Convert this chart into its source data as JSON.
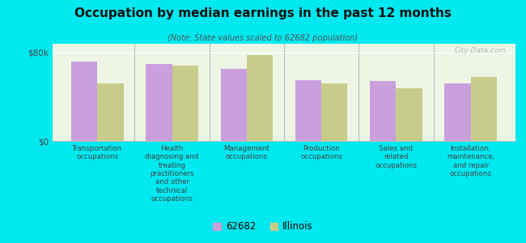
{
  "title": "Occupation by median earnings in the past 12 months",
  "subtitle": "(Note: State values scaled to 62682 population)",
  "categories": [
    "Transportation\noccupations",
    "Health\ndiagnosing and\ntreating\npractitioners\nand other\ntechnical\noccupations",
    "Management\noccupations",
    "Production\noccupations",
    "Sales and\nrelated\noccupations",
    "Installation,\nmaintenance,\nand repair\noccupations"
  ],
  "values_62682": [
    72000,
    70000,
    65000,
    55000,
    54000,
    52000
  ],
  "values_illinois": [
    52000,
    68000,
    78000,
    52000,
    48000,
    58000
  ],
  "color_62682": "#c9a0dc",
  "color_illinois": "#c8cc8a",
  "bar_width": 0.35,
  "ylim": [
    0,
    88000
  ],
  "yticks": [
    0,
    80000
  ],
  "ytick_labels": [
    "$0",
    "$80k"
  ],
  "background_color": "#eef5e4",
  "outer_background": "#00e8f0",
  "legend_label_62682": "62682",
  "legend_label_illinois": "Illinois",
  "watermark": "City-Data.com"
}
